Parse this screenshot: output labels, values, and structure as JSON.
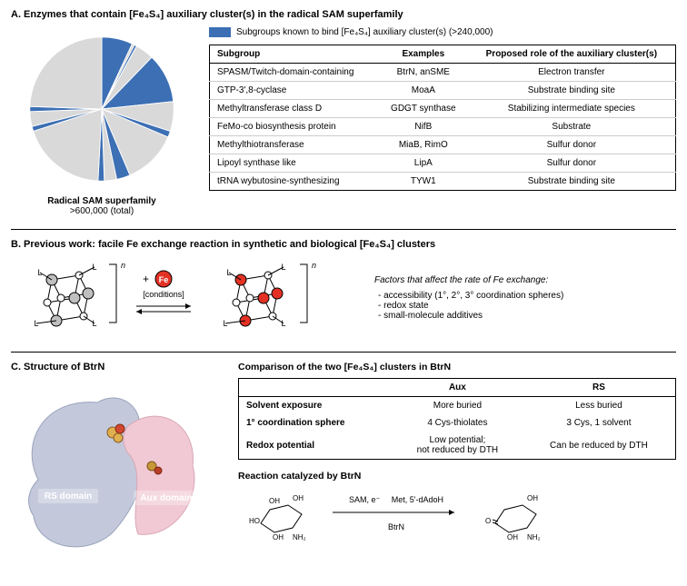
{
  "panelA": {
    "title": "A.  Enzymes that contain [Fe₄S₄] auxiliary cluster(s) in the radical SAM superfamily",
    "legend_label": "Subgroups known to bind [Fe₄S₄] auxiliary cluster(s) (>240,000)",
    "pie": {
      "caption": "Radical SAM superfamily",
      "subcaption": ">600,000 (total)",
      "highlight_color": "#3c6fb4",
      "base_color": "#d9d9d9",
      "background": "#ffffff",
      "slices": [
        {
          "start": 0,
          "end": 25,
          "highlight": true
        },
        {
          "start": 25,
          "end": 27,
          "highlight": false
        },
        {
          "start": 27,
          "end": 29,
          "highlight": true
        },
        {
          "start": 29,
          "end": 44,
          "highlight": false
        },
        {
          "start": 44,
          "end": 84,
          "highlight": true
        },
        {
          "start": 84,
          "end": 108,
          "highlight": false
        },
        {
          "start": 108,
          "end": 113,
          "highlight": true
        },
        {
          "start": 113,
          "end": 157,
          "highlight": false
        },
        {
          "start": 157,
          "end": 168,
          "highlight": true
        },
        {
          "start": 168,
          "end": 178,
          "highlight": false
        },
        {
          "start": 178,
          "end": 183,
          "highlight": true
        },
        {
          "start": 183,
          "end": 252,
          "highlight": false
        },
        {
          "start": 252,
          "end": 256,
          "highlight": true
        },
        {
          "start": 256,
          "end": 268,
          "highlight": false
        },
        {
          "start": 268,
          "end": 272,
          "highlight": true
        },
        {
          "start": 272,
          "end": 360,
          "highlight": false
        }
      ]
    },
    "table": {
      "columns": [
        "Subgroup",
        "Examples",
        "Proposed role of the auxiliary cluster(s)"
      ],
      "rows": [
        [
          "SPASM/Twitch-domain-containing",
          "BtrN, anSME",
          "Electron transfer"
        ],
        [
          "GTP-3',8-cyclase",
          "MoaA",
          "Substrate binding site"
        ],
        [
          "Methyltransferase class D",
          "GDGT synthase",
          "Stabilizing intermediate species"
        ],
        [
          "FeMo-co biosynthesis protein",
          "NifB",
          "Substrate"
        ],
        [
          "Methylthiotransferase",
          "MiaB, RimO",
          "Sulfur donor"
        ],
        [
          "Lipoyl synthase like",
          "LipA",
          "Sulfur donor"
        ],
        [
          "tRNA wybutosine-synthesizing",
          "TYW1",
          "Substrate binding site"
        ]
      ]
    }
  },
  "panelB": {
    "title": "B.  Previous work: facile Fe exchange reaction in synthetic and biological [Fe₄S₄] clusters",
    "conditions_top": "+",
    "fe_label": "Fe",
    "conditions_label": "[conditions]",
    "charge_n": "n",
    "factors_heading": "Factors that affect the rate of Fe exchange:",
    "factors": [
      "accessibility (1°, 2°, 3° coordination spheres)",
      "redox state",
      "small-molecule additives"
    ],
    "colors": {
      "fe_red": "#e33124",
      "cluster_gray": "#bfbfbf",
      "cluster_white": "#ffffff",
      "line": "#000000"
    },
    "ligand_label": "L"
  },
  "panelC": {
    "title": "C.  Structure of BtrN",
    "rs_label": "RS domain",
    "aux_label": "Aux domain",
    "struct_colors": {
      "rs": "#c3c9db",
      "aux": "#f1c9d4",
      "cluster": "#e0b050"
    },
    "comparison_heading": "Comparison of the two [Fe₄S₄] clusters in BtrN",
    "table": {
      "cols": [
        "",
        "Aux",
        "RS"
      ],
      "rows": [
        {
          "label": "Solvent exposure",
          "aux": "More buried",
          "rs": "Less buried"
        },
        {
          "label": "1° coordination sphere",
          "aux": "4 Cys-thiolates",
          "rs": "3 Cys, 1 solvent"
        },
        {
          "label": "Redox potential",
          "aux": "Low potential;\nnot reduced by DTH",
          "rs": "Can be reduced by DTH"
        }
      ]
    },
    "reaction_heading": "Reaction catalyzed by BtrN",
    "reaction": {
      "top_left": "SAM, e⁻",
      "top_right": "Met, 5'-dAdoH",
      "enzyme": "BtrN",
      "substrate_labels": [
        "HO",
        "OH",
        "OH",
        "NH₂"
      ],
      "product_labels": [
        "O",
        "OH",
        "OH",
        "NH₂"
      ]
    }
  }
}
